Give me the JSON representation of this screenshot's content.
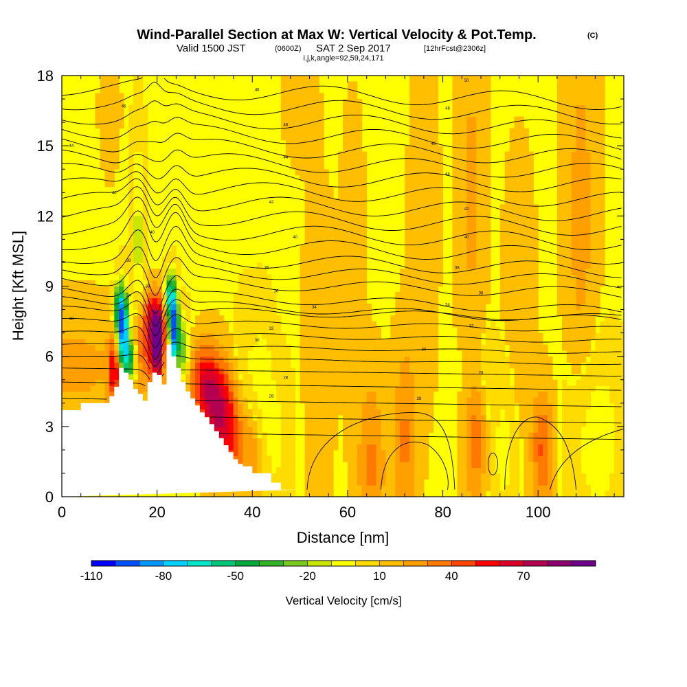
{
  "chart_data": {
    "type": "heatmap",
    "title": "Wind-Parallel Section at Max W: Vertical Velocity & Pot.Temp.",
    "title_mark": "(C)",
    "subtitle": {
      "prefix": "Valid 1500 JST",
      "utc": "(0600Z)",
      "date": "SAT 2 Sep 2017",
      "forecast": "[12hrFcst@2306z]"
    },
    "params": "i,j,k,angle=92,59,24,171",
    "xlabel": "Distance [nm]",
    "ylabel": "Height [Kft MSL]",
    "xlim": [
      0,
      118
    ],
    "ylim": [
      0,
      18
    ],
    "x_ticks": [
      0,
      20,
      40,
      60,
      80,
      100
    ],
    "y_ticks": [
      0,
      3,
      6,
      9,
      12,
      15,
      18
    ],
    "colorbar": {
      "label": "Vertical Velocity [cm/s]",
      "tick_labels": [
        -110,
        -80,
        -50,
        -20,
        10,
        40,
        70
      ],
      "colors": [
        "#0000ff",
        "#0050ff",
        "#0096ff",
        "#00d2ff",
        "#00e6c8",
        "#00c878",
        "#00aa3c",
        "#32b428",
        "#78c81e",
        "#c8e600",
        "#ffff00",
        "#ffdc00",
        "#ffbe00",
        "#ffa000",
        "#ff7800",
        "#ff4600",
        "#ff0000",
        "#dc0028",
        "#b40050",
        "#8c006e",
        "#6e008c"
      ]
    },
    "terrain_profile": {
      "x": [
        0,
        4,
        4,
        10,
        10,
        11,
        11,
        12,
        12,
        13,
        13,
        14,
        14,
        15,
        15,
        16,
        16,
        17,
        17,
        18,
        18,
        19,
        19,
        20,
        20,
        21,
        21,
        22,
        22,
        23,
        23,
        24,
        24,
        25,
        25,
        26,
        26,
        27,
        27,
        28,
        28,
        29,
        29,
        30,
        30,
        31,
        31,
        32,
        32,
        33,
        33,
        34,
        34,
        35,
        35,
        36,
        36,
        37,
        37,
        38,
        38,
        39,
        39,
        40,
        40,
        44,
        44,
        46,
        46,
        50,
        50,
        118
      ],
      "y": [
        3.7,
        3.7,
        4.0,
        4.0,
        4.3,
        4.3,
        4.7,
        4.7,
        5.5,
        5.5,
        5.3,
        5.3,
        5.0,
        5.0,
        4.6,
        4.6,
        4.4,
        4.4,
        4.1,
        4.1,
        4.9,
        4.9,
        5.3,
        5.3,
        5.2,
        5.2,
        4.8,
        4.8,
        6.5,
        6.5,
        6.0,
        6.0,
        5.5,
        5.5,
        4.9,
        4.9,
        4.5,
        4.5,
        4.2,
        4.2,
        3.9,
        3.9,
        3.6,
        3.6,
        3.4,
        3.4,
        3.1,
        3.1,
        2.8,
        2.8,
        2.5,
        2.5,
        2.2,
        2.2,
        1.9,
        1.9,
        1.6,
        1.6,
        1.4,
        1.4,
        1.3,
        1.3,
        1.3,
        1.3,
        1.0,
        1.0,
        0.6,
        0.6,
        0.3,
        0.3,
        0.3
      ]
    },
    "velocity_features": [
      {
        "x": 13,
        "y": 6.8,
        "value": -100,
        "sx": 0.9,
        "sy": 1.3
      },
      {
        "x": 12,
        "y": 8.0,
        "value": -60,
        "sx": 0.7,
        "sy": 0.8
      },
      {
        "x": 14.5,
        "y": 5.8,
        "value": -50,
        "sx": 0.9,
        "sy": 0.7
      },
      {
        "x": 23.5,
        "y": 7.2,
        "value": -105,
        "sx": 0.7,
        "sy": 1.2
      },
      {
        "x": 22.5,
        "y": 8.6,
        "value": -60,
        "sx": 0.7,
        "sy": 0.7
      },
      {
        "x": 25.5,
        "y": 6.3,
        "value": -40,
        "sx": 0.9,
        "sy": 1.0
      },
      {
        "x": 20,
        "y": 6.3,
        "value": 80,
        "sx": 1.0,
        "sy": 1.1
      },
      {
        "x": 19.5,
        "y": 7.6,
        "value": 45,
        "sx": 1.6,
        "sy": 0.8
      },
      {
        "x": 16.5,
        "y": 6.3,
        "value": 28,
        "sx": 1.6,
        "sy": 1.3
      },
      {
        "x": 11,
        "y": 5.5,
        "value": 40,
        "sx": 0.7,
        "sy": 0.8
      },
      {
        "x": 11.5,
        "y": 5.0,
        "value": 18,
        "sx": 1.2,
        "sy": 1.3
      },
      {
        "x": 32,
        "y": 4.0,
        "value": 52,
        "sx": 2.4,
        "sy": 1.4
      },
      {
        "x": 35,
        "y": 2.6,
        "value": 35,
        "sx": 2.4,
        "sy": 1.5
      },
      {
        "x": 29.5,
        "y": 5.2,
        "value": 28,
        "sx": 2.0,
        "sy": 1.0
      },
      {
        "x": 40,
        "y": 2.0,
        "value": 22,
        "sx": 2.2,
        "sy": 1.5
      },
      {
        "x": 38.5,
        "y": 4.3,
        "value": -12,
        "sx": 1.6,
        "sy": 2.4
      },
      {
        "x": 44,
        "y": 2.5,
        "value": -15,
        "sx": 2.5,
        "sy": 2.2
      },
      {
        "x": 42,
        "y": 5.0,
        "value": -12,
        "sx": 1.5,
        "sy": 2.2
      },
      {
        "x": 2,
        "y": 5.6,
        "value": 13,
        "sx": 9.0,
        "sy": 1.6
      },
      {
        "x": 16,
        "y": 11.0,
        "value": -25,
        "sx": 0.9,
        "sy": 3.0
      },
      {
        "x": 65,
        "y": 1.3,
        "value": 22,
        "sx": 2.0,
        "sy": 2.5
      },
      {
        "x": 72,
        "y": 2.4,
        "value": 22,
        "sx": 1.6,
        "sy": 2.8
      },
      {
        "x": 87,
        "y": 2.2,
        "value": 22,
        "sx": 1.4,
        "sy": 2.2
      },
      {
        "x": 101,
        "y": 2.0,
        "value": 32,
        "sx": 1.6,
        "sy": 1.7
      },
      {
        "x": 93,
        "y": 2.0,
        "value": -15,
        "sx": 2.0,
        "sy": 2.0
      },
      {
        "x": 112,
        "y": 2.5,
        "value": -18,
        "sx": 4.0,
        "sy": 2.5
      },
      {
        "x": 89,
        "y": 5.5,
        "value": -10,
        "sx": 3.0,
        "sy": 1.0
      },
      {
        "x": 86,
        "y": 13.0,
        "value": 12,
        "sx": 1.8,
        "sy": 6.0
      },
      {
        "x": 109,
        "y": 12.0,
        "value": 14,
        "sx": 2.2,
        "sy": 6.0
      },
      {
        "x": 76,
        "y": 12.0,
        "value": 8,
        "sx": 1.8,
        "sy": 5.0
      },
      {
        "x": 50,
        "y": 17.0,
        "value": 10,
        "sx": 2.0,
        "sy": 1.5
      },
      {
        "x": 10,
        "y": 16.5,
        "value": 10,
        "sx": 1.2,
        "sy": 1.5
      },
      {
        "x": 96,
        "y": 8.0,
        "value": 9,
        "sx": 2.0,
        "sy": 4.0
      },
      {
        "x": 54,
        "y": 6.5,
        "value": 8,
        "sx": 2.0,
        "sy": 4.0
      },
      {
        "x": 61,
        "y": 10.0,
        "value": 7,
        "sx": 1.6,
        "sy": 4.0
      }
    ],
    "contour_labels": [
      {
        "x": 13,
        "y": 16.7,
        "text": "46"
      },
      {
        "x": 41,
        "y": 17.4,
        "text": "46"
      },
      {
        "x": 85,
        "y": 17.8,
        "text": "50"
      },
      {
        "x": 81,
        "y": 16.6,
        "text": "48"
      },
      {
        "x": 47,
        "y": 15.9,
        "text": "48"
      },
      {
        "x": 2,
        "y": 15.0,
        "text": "44"
      },
      {
        "x": 78,
        "y": 15.1,
        "text": "46"
      },
      {
        "x": 47,
        "y": 14.5,
        "text": "44"
      },
      {
        "x": 81,
        "y": 13.8,
        "text": "44"
      },
      {
        "x": 11,
        "y": 13.0,
        "text": "40"
      },
      {
        "x": 44,
        "y": 12.6,
        "text": "42"
      },
      {
        "x": 85,
        "y": 12.3,
        "text": "42"
      },
      {
        "x": 19,
        "y": 11.3,
        "text": "40"
      },
      {
        "x": 49,
        "y": 11.1,
        "text": "40"
      },
      {
        "x": 85,
        "y": 11.1,
        "text": "40"
      },
      {
        "x": 14,
        "y": 10.1,
        "text": "38"
      },
      {
        "x": 43,
        "y": 9.8,
        "text": "36"
      },
      {
        "x": 83,
        "y": 9.8,
        "text": "38"
      },
      {
        "x": 18,
        "y": 9.0,
        "text": "38"
      },
      {
        "x": 45,
        "y": 8.8,
        "text": "36"
      },
      {
        "x": 88,
        "y": 8.7,
        "text": "36"
      },
      {
        "x": 14,
        "y": 8.6,
        "text": "34"
      },
      {
        "x": 53,
        "y": 8.1,
        "text": "34"
      },
      {
        "x": 81,
        "y": 8.2,
        "text": "34"
      },
      {
        "x": 2,
        "y": 7.6,
        "text": "30"
      },
      {
        "x": 22,
        "y": 7.8,
        "text": "32"
      },
      {
        "x": 44,
        "y": 7.2,
        "text": "32"
      },
      {
        "x": 86,
        "y": 7.3,
        "text": "32"
      },
      {
        "x": 41,
        "y": 6.7,
        "text": "30"
      },
      {
        "x": 76,
        "y": 6.3,
        "text": "30"
      },
      {
        "x": 47,
        "y": 5.1,
        "text": "28"
      },
      {
        "x": 88,
        "y": 5.3,
        "text": "28"
      },
      {
        "x": 44,
        "y": 4.3,
        "text": "28"
      },
      {
        "x": 75,
        "y": 4.2,
        "text": "28"
      }
    ]
  }
}
